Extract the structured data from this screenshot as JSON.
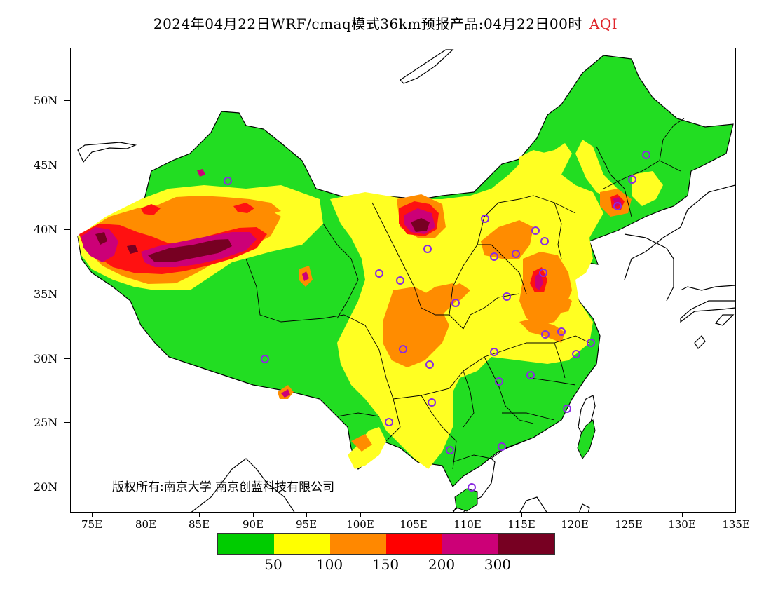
{
  "title": {
    "main": "2024年04月22日WRF/cmaq模式36km预报产品:04月22日00时",
    "variable": "AQI",
    "variable_color": "#e0262c"
  },
  "axes": {
    "y_ticks": [
      "50N",
      "45N",
      "40N",
      "35N",
      "30N",
      "25N",
      "20N"
    ],
    "x_ticks": [
      "75E",
      "80E",
      "85E",
      "90E",
      "95E",
      "100E",
      "105E",
      "110E",
      "115E",
      "120E",
      "125E",
      "130E",
      "135E"
    ],
    "lon_range": [
      73,
      135
    ],
    "lat_range": [
      18,
      54
    ]
  },
  "copyright": "版权所有:南京大学 南京创蓝科技有限公司",
  "legend": {
    "colors": [
      "#00cc00",
      "#ffff00",
      "#ff8800",
      "#ff0000",
      "#cc0077",
      "#770022"
    ],
    "labels": [
      "50",
      "100",
      "150",
      "200",
      "300"
    ]
  },
  "colors": {
    "good": "#22dd22",
    "moderate": "#ffff22",
    "unhealthy_sensitive": "#ff8c00",
    "unhealthy": "#ff1111",
    "very_unhealthy": "#cc0077",
    "hazardous": "#770022",
    "station_marker": "#8a2be2"
  }
}
